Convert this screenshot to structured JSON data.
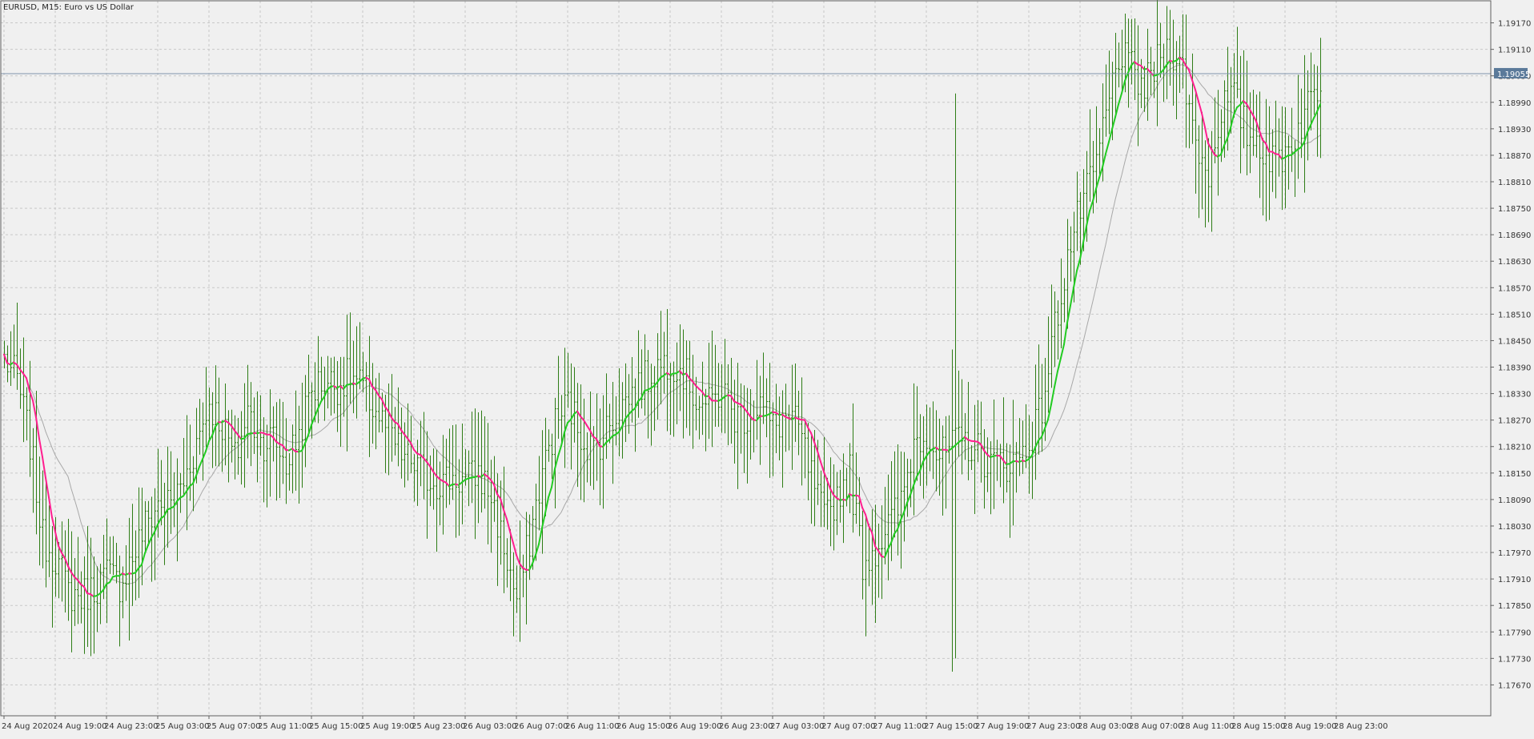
{
  "header": {
    "symbol_label": "EURUSD, M15:  Euro vs US Dollar"
  },
  "price_tag": {
    "label": "1.19055",
    "value": 1.19055,
    "line_color": "#7f93ad",
    "tag_color": "#5b7a9a"
  },
  "colors": {
    "background": "#f0f0f0",
    "grid": "#c8c8c8",
    "bar": "#2e7d16",
    "ma_up": "#22cc22",
    "ma_down": "#ff1f8f",
    "ma_slow": "#a8a8a8",
    "axis_text": "#333333"
  },
  "chart_data": {
    "type": "ohlc",
    "title": "EURUSD, M15:  Euro vs US Dollar",
    "ylim": [
      1.176,
      1.1922
    ],
    "y_ticks": [
      "1.19170",
      "1.19110",
      "1.19050",
      "1.18990",
      "1.18930",
      "1.18870",
      "1.18810",
      "1.18750",
      "1.18690",
      "1.18630",
      "1.18570",
      "1.18510",
      "1.18450",
      "1.18390",
      "1.18330",
      "1.18270",
      "1.18210",
      "1.18150",
      "1.18090",
      "1.18030",
      "1.17970",
      "1.17910",
      "1.17850",
      "1.17790",
      "1.17730",
      "1.17670"
    ],
    "x_ticks": [
      "24 Aug 2020",
      "24 Aug 19:00",
      "24 Aug 23:00",
      "25 Aug 03:00",
      "25 Aug 07:00",
      "25 Aug 11:00",
      "25 Aug 15:00",
      "25 Aug 19:00",
      "25 Aug 23:00",
      "26 Aug 03:00",
      "26 Aug 07:00",
      "26 Aug 11:00",
      "26 Aug 15:00",
      "26 Aug 19:00",
      "26 Aug 23:00",
      "27 Aug 03:00",
      "27 Aug 07:00",
      "27 Aug 11:00",
      "27 Aug 15:00",
      "27 Aug 19:00",
      "27 Aug 23:00",
      "28 Aug 03:00",
      "28 Aug 07:00",
      "28 Aug 11:00",
      "28 Aug 15:00",
      "28 Aug 19:00",
      "28 Aug 23:00"
    ],
    "bars_per_tick": 16,
    "close_anchors": [
      [
        0,
        1.1841
      ],
      [
        4,
        1.1836
      ],
      [
        8,
        1.1822
      ],
      [
        12,
        1.18
      ],
      [
        16,
        1.1796
      ],
      [
        20,
        1.1788
      ],
      [
        24,
        1.1787
      ],
      [
        28,
        1.1789
      ],
      [
        32,
        1.1792
      ],
      [
        36,
        1.179
      ],
      [
        40,
        1.1796
      ],
      [
        44,
        1.1803
      ],
      [
        48,
        1.1808
      ],
      [
        52,
        1.1808
      ],
      [
        56,
        1.1813
      ],
      [
        60,
        1.1822
      ],
      [
        64,
        1.1831
      ],
      [
        68,
        1.1826
      ],
      [
        72,
        1.1818
      ],
      [
        76,
        1.1829
      ],
      [
        80,
        1.1822
      ],
      [
        84,
        1.1823
      ],
      [
        88,
        1.1817
      ],
      [
        92,
        1.1824
      ],
      [
        96,
        1.1834
      ],
      [
        100,
        1.1836
      ],
      [
        104,
        1.1835
      ],
      [
        108,
        1.1837
      ],
      [
        112,
        1.1834
      ],
      [
        116,
        1.1829
      ],
      [
        120,
        1.1824
      ],
      [
        124,
        1.1819
      ],
      [
        128,
        1.1817
      ],
      [
        132,
        1.1814
      ],
      [
        136,
        1.1813
      ],
      [
        140,
        1.1814
      ],
      [
        144,
        1.1813
      ],
      [
        148,
        1.1815
      ],
      [
        152,
        1.181
      ],
      [
        156,
        1.1798
      ],
      [
        160,
        1.1786
      ],
      [
        164,
        1.18
      ],
      [
        168,
        1.1815
      ],
      [
        172,
        1.1826
      ],
      [
        176,
        1.1831
      ],
      [
        180,
        1.1824
      ],
      [
        184,
        1.182
      ],
      [
        188,
        1.1825
      ],
      [
        192,
        1.183
      ],
      [
        196,
        1.1833
      ],
      [
        200,
        1.1836
      ],
      [
        204,
        1.1839
      ],
      [
        208,
        1.1841
      ],
      [
        212,
        1.1838
      ],
      [
        216,
        1.1832
      ],
      [
        220,
        1.183
      ],
      [
        224,
        1.1834
      ],
      [
        228,
        1.1828
      ],
      [
        232,
        1.1828
      ],
      [
        236,
        1.1831
      ],
      [
        240,
        1.1825
      ],
      [
        244,
        1.1828
      ],
      [
        248,
        1.1825
      ],
      [
        252,
        1.1814
      ],
      [
        256,
        1.1804
      ],
      [
        260,
        1.181
      ],
      [
        264,
        1.1815
      ],
      [
        268,
        1.1795
      ],
      [
        272,
        1.1798
      ],
      [
        276,
        1.1803
      ],
      [
        280,
        1.1808
      ],
      [
        284,
        1.1822
      ],
      [
        288,
        1.1825
      ],
      [
        292,
        1.1818
      ],
      [
        296,
        1.1821
      ],
      [
        300,
        1.1822
      ],
      [
        304,
        1.182
      ],
      [
        308,
        1.1817
      ],
      [
        312,
        1.1817
      ],
      [
        316,
        1.1818
      ],
      [
        320,
        1.1822
      ],
      [
        324,
        1.183
      ],
      [
        328,
        1.1848
      ],
      [
        332,
        1.1864
      ],
      [
        336,
        1.1875
      ],
      [
        340,
        1.1882
      ],
      [
        344,
        1.1896
      ],
      [
        348,
        1.191
      ],
      [
        352,
        1.1906
      ],
      [
        356,
        1.1902
      ],
      [
        360,
        1.1908
      ],
      [
        364,
        1.1912
      ],
      [
        368,
        1.1906
      ],
      [
        372,
        1.189
      ],
      [
        376,
        1.1883
      ],
      [
        380,
        1.1898
      ],
      [
        384,
        1.19
      ],
      [
        388,
        1.1892
      ],
      [
        392,
        1.189
      ],
      [
        396,
        1.1885
      ],
      [
        400,
        1.1888
      ],
      [
        404,
        1.1893
      ],
      [
        408,
        1.19
      ],
      [
        411,
        1.1904
      ]
    ],
    "spikes": [
      [
        296,
        1.1843,
        1.177
      ],
      [
        297,
        1.1901,
        1.1773
      ]
    ],
    "series": [
      {
        "name": "",
        "type": "ohlc",
        "color": "#2e7d16"
      },
      {
        "name": "",
        "type": "line",
        "color": "#22cc22",
        "down_color": "#ff1f8f",
        "period": 8
      },
      {
        "name": "",
        "type": "line",
        "color": "#a8a8a8",
        "period": 21
      }
    ],
    "grid": true
  }
}
